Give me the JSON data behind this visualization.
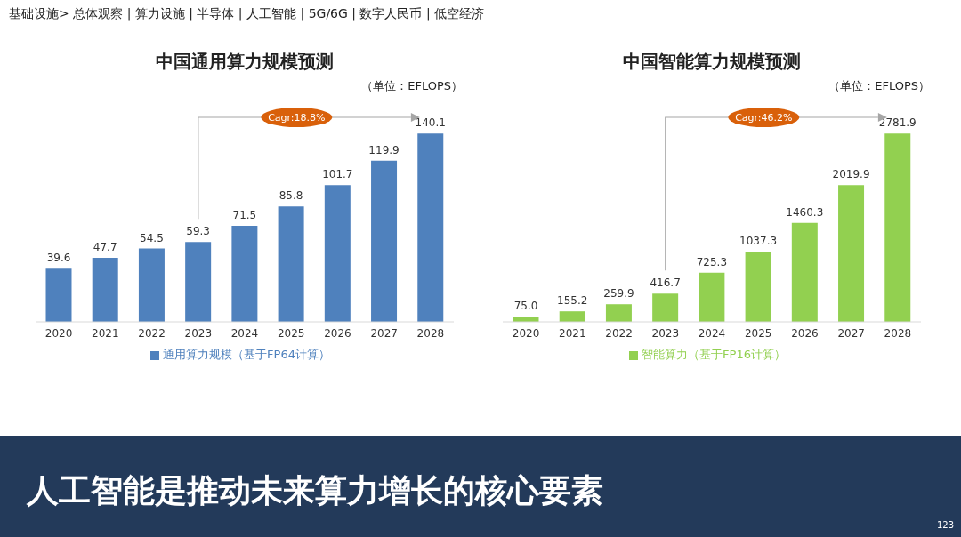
{
  "chart_data": [
    {
      "type": "bar",
      "title": "中国通用算力规模预测",
      "annotations": [
        "（单位：EFLOPS）",
        "Cagr:18.8%",
        "基础设施> 总体观察 | 算力设施 | 半导体 | 人工智能 | 5G/6G | 数字人民币 | 低空经济",
        "人工智能是推动未来算力增长的核心要素",
        "123"
      ],
      "categories": [
        "2020",
        "2021",
        "2022",
        "2023",
        "2024",
        "2025",
        "2026",
        "2027",
        "2028"
      ],
      "series": [
        {
          "name": "通用算力规模（基于FP64计算）",
          "color": "#4f81bd",
          "values": [
            39.6,
            47.7,
            54.5,
            59.3,
            71.5,
            85.8,
            101.7,
            119.9,
            140.1
          ]
        }
      ],
      "data_labels": true,
      "legend": "bottom",
      "grid": false,
      "tick_labels": "x"
    },
    {
      "type": "bar",
      "title": "中国智能算力规模预测",
      "annotations": [
        "（单位：EFLOPS）",
        "Cagr:46.2%"
      ],
      "categories": [
        "2020",
        "2021",
        "2022",
        "2023",
        "2024",
        "2025",
        "2026",
        "2027",
        "2028"
      ],
      "series": [
        {
          "name": "智能算力（基于FP16计算）",
          "color": "#92d050",
          "values": [
            75.0,
            155.2,
            259.9,
            416.7,
            725.3,
            1037.3,
            1460.3,
            2019.9,
            2781.9
          ],
          "value_labels": [
            "75.0",
            "155.2",
            "259.9",
            "416.7",
            "725.3",
            "1037.3",
            "1460.3",
            "2019.9",
            "2781.9"
          ]
        }
      ],
      "legend": "bottom",
      "grid": false,
      "tick_labels": "x"
    }
  ]
}
